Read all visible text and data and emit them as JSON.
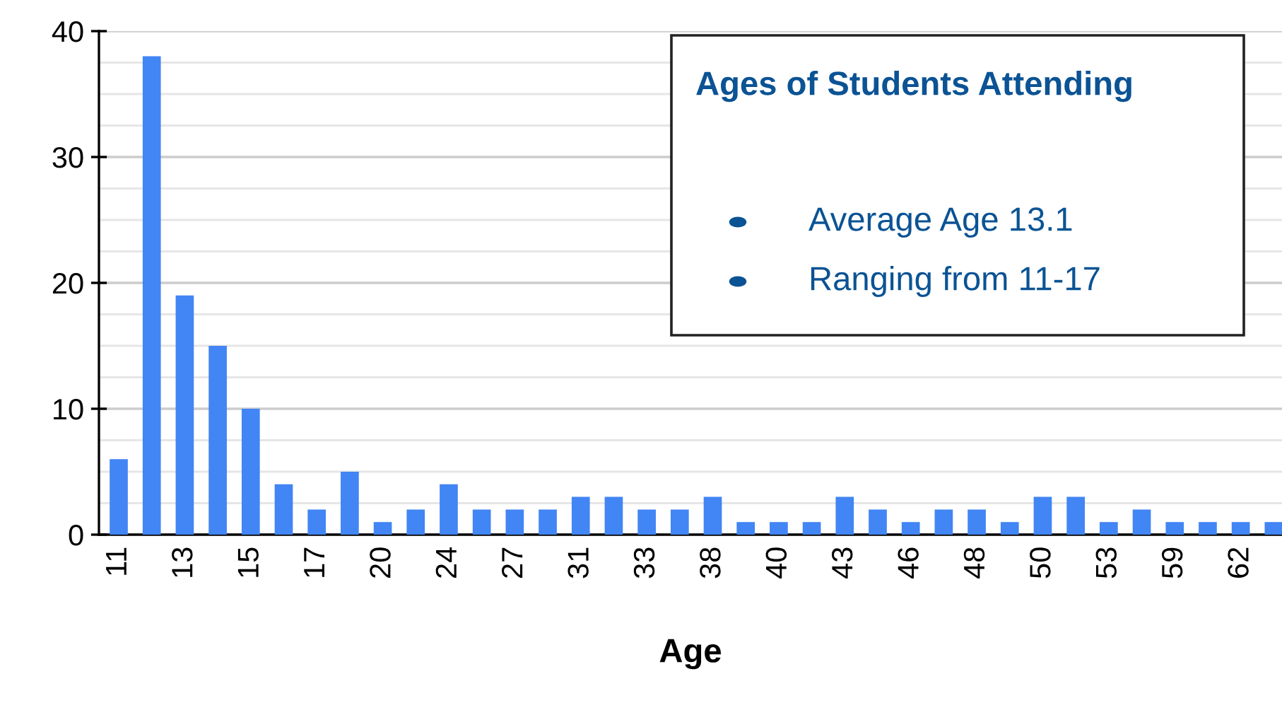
{
  "chart_data": {
    "type": "bar",
    "xlabel": "Age",
    "categories": [
      "11",
      null,
      "13",
      null,
      "15",
      null,
      "17",
      null,
      "20",
      null,
      "24",
      null,
      "27",
      null,
      "31",
      null,
      "33",
      null,
      "38",
      null,
      "40",
      null,
      "43",
      null,
      "46",
      null,
      "48",
      null,
      "50",
      null,
      "53",
      null,
      "59",
      null,
      "62",
      null
    ],
    "values": [
      6,
      38,
      19,
      15,
      10,
      4,
      2,
      5,
      1,
      2,
      4,
      2,
      2,
      2,
      3,
      3,
      2,
      2,
      3,
      1,
      1,
      1,
      3,
      2,
      1,
      2,
      2,
      1,
      3,
      3,
      1,
      2,
      1,
      1,
      1,
      1
    ],
    "color": "#4285f4",
    "ylim": [
      0,
      40
    ],
    "yticks": [
      0,
      {
        "value": 2.5,
        "label": null
      },
      {
        "value": 5,
        "label": null
      },
      {
        "value": 7.5,
        "label": null
      },
      10,
      {
        "value": 12.5,
        "label": null
      },
      {
        "value": 15,
        "label": null
      },
      {
        "value": 17.5,
        "label": null
      },
      20,
      {
        "value": 22.5,
        "label": null
      },
      {
        "value": 25,
        "label": null
      },
      {
        "value": 27.5,
        "label": null
      },
      30,
      {
        "value": 32.5,
        "label": null
      },
      {
        "value": 35,
        "label": null
      },
      {
        "value": 37.5,
        "label": null
      },
      40
    ],
    "grid": "y",
    "annotations": [
      "Ages of Students Attending",
      "Average Age 13.1",
      "Ranging from 11-17"
    ]
  }
}
